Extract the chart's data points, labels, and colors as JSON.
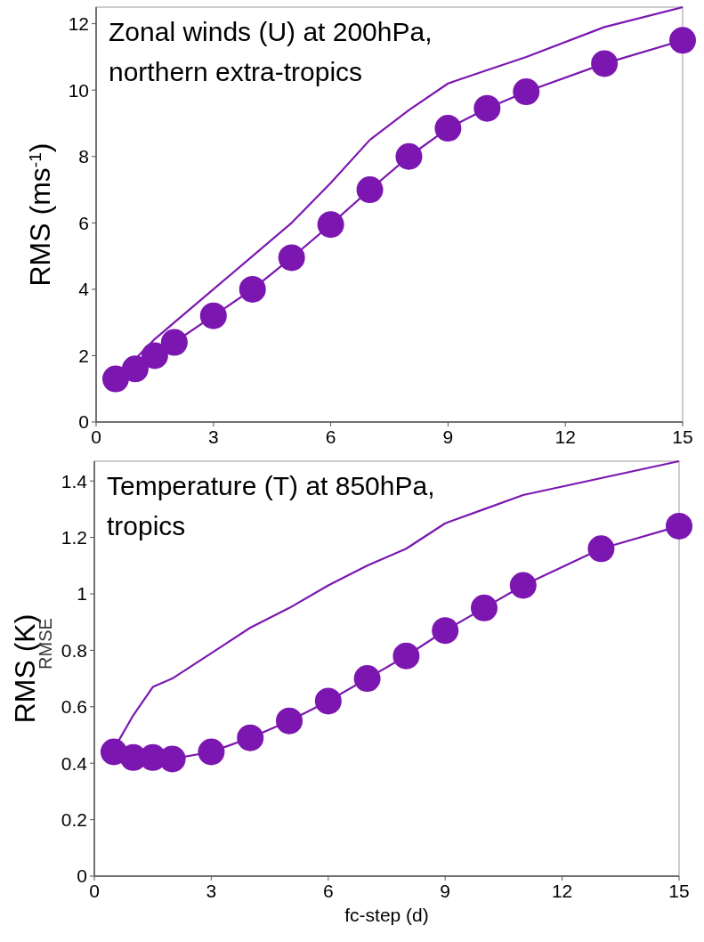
{
  "chart_data": [
    {
      "type": "line",
      "title": "Zonal winds (U) at 200hPa,\nnorthern extra-tropics",
      "ylabel": "RMS (ms$^{-1}$)",
      "x": [
        0.5,
        1,
        1.5,
        2,
        3,
        4,
        5,
        6,
        7,
        8,
        9,
        10,
        11,
        13,
        15
      ],
      "series": [
        {
          "color": "#7b17b0",
          "marker": "none",
          "values": [
            1.3,
            1.9,
            2.5,
            3.0,
            4.0,
            5.0,
            6.0,
            7.2,
            8.5,
            9.4,
            10.2,
            10.6,
            11.0,
            11.9,
            12.5
          ]
        },
        {
          "color": "#7b17b0",
          "marker": "circle",
          "values": [
            1.3,
            1.6,
            2.0,
            2.4,
            3.2,
            4.0,
            4.95,
            5.95,
            7.0,
            8.0,
            8.85,
            9.45,
            9.95,
            10.8,
            11.5
          ]
        }
      ],
      "xlim": [
        0,
        15
      ],
      "xticks": [
        0,
        3,
        6,
        9,
        12,
        15
      ],
      "ylim": [
        0,
        12.5
      ],
      "yticks": [
        0,
        2,
        4,
        6,
        8,
        10,
        12
      ],
      "grid": false
    },
    {
      "type": "line",
      "title": "Temperature (T) at 850hPa,\ntropics",
      "ylabel": "RMS (K)",
      "xlabel": "fc-step (d)",
      "annotations": [
        "RMSE"
      ],
      "x": [
        0.5,
        1,
        1.5,
        2,
        3,
        4,
        5,
        6,
        7,
        8,
        9,
        10,
        11,
        13,
        15
      ],
      "series": [
        {
          "color": "#7b17b0",
          "marker": "none",
          "values": [
            0.45,
            0.57,
            0.67,
            0.7,
            0.79,
            0.88,
            0.95,
            1.03,
            1.1,
            1.16,
            1.25,
            1.3,
            1.35,
            1.41,
            1.47
          ]
        },
        {
          "color": "#7b17b0",
          "marker": "circle",
          "values": [
            0.44,
            0.42,
            0.42,
            0.415,
            0.44,
            0.49,
            0.55,
            0.62,
            0.7,
            0.78,
            0.87,
            0.95,
            1.03,
            1.16,
            1.24
          ]
        }
      ],
      "xlim": [
        0,
        15
      ],
      "xticks": [
        0,
        3,
        6,
        9,
        12,
        15
      ],
      "ylim": [
        0,
        1.47
      ],
      "yticks": [
        0,
        0.2,
        0.4,
        0.6,
        0.8,
        {
          "value": 1,
          "label": "1"
        },
        1.2,
        1.4
      ],
      "grid": false
    }
  ]
}
